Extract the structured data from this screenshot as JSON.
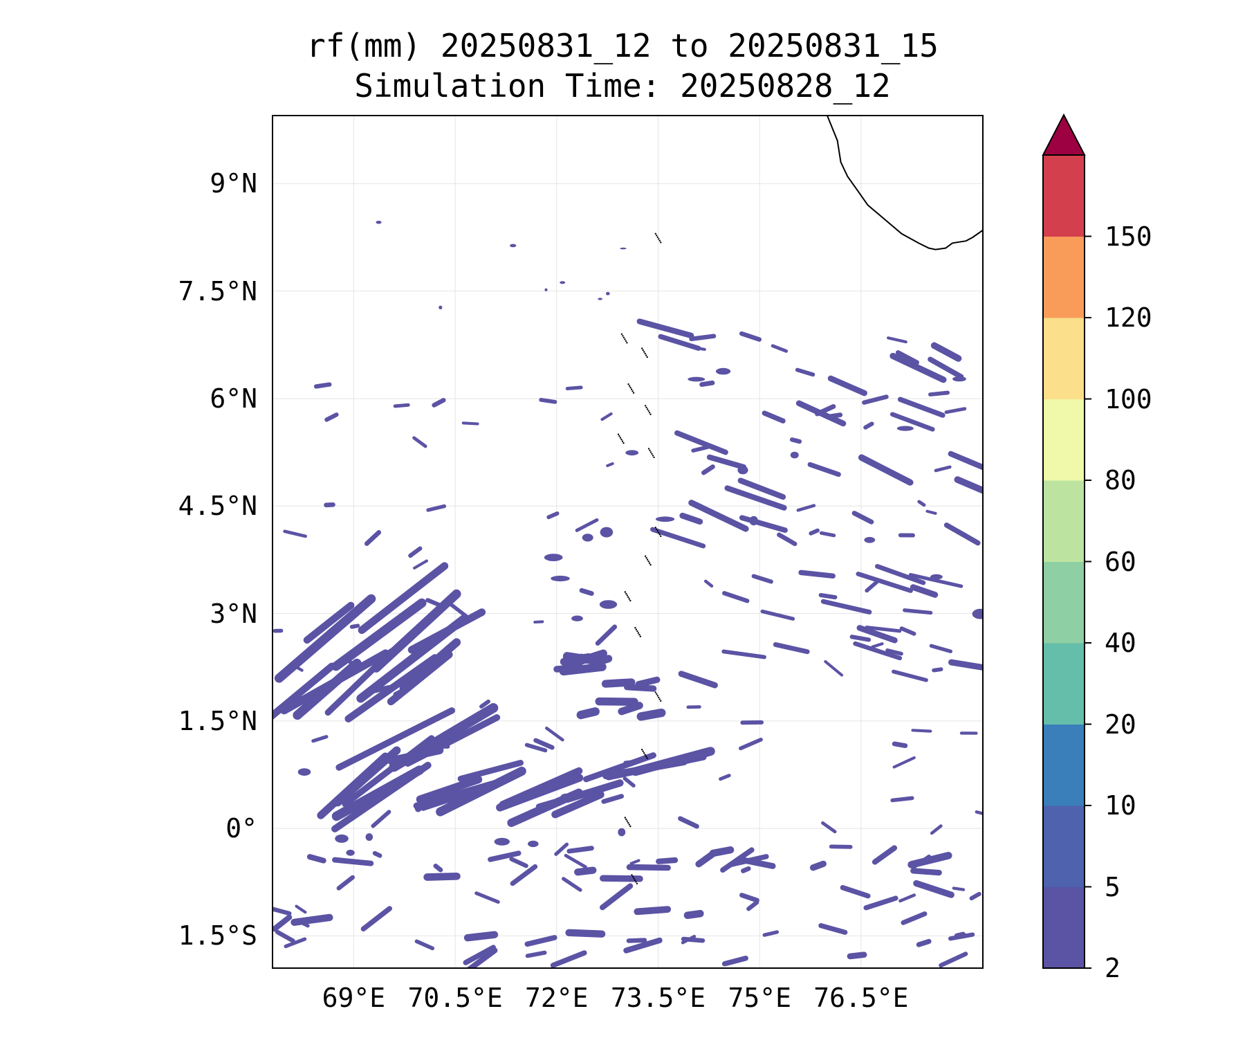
{
  "title": {
    "line1": "rf(mm) 20250831_12 to 20250831_15",
    "line2": "Simulation Time: 20250828_12"
  },
  "map": {
    "lon_range": [
      67.8,
      78.3
    ],
    "lat_range": [
      -1.95,
      9.95
    ],
    "lat_ticks": [
      {
        "value": 9,
        "label": "9°N"
      },
      {
        "value": 7.5,
        "label": "7.5°N"
      },
      {
        "value": 6,
        "label": "6°N"
      },
      {
        "value": 4.5,
        "label": "4.5°N"
      },
      {
        "value": 3,
        "label": "3°N"
      },
      {
        "value": 1.5,
        "label": "1.5°N"
      },
      {
        "value": 0,
        "label": "0°"
      },
      {
        "value": -1.5,
        "label": "1.5°S"
      }
    ],
    "lon_ticks": [
      {
        "value": 69,
        "label": "69°E"
      },
      {
        "value": 70.5,
        "label": "70.5°E"
      },
      {
        "value": 72,
        "label": "72°E"
      },
      {
        "value": 73.5,
        "label": "73.5°E"
      },
      {
        "value": 75,
        "label": "75°E"
      },
      {
        "value": 76.5,
        "label": "76.5°E"
      }
    ],
    "gridlines": true,
    "rain_color": "#5b53a4",
    "rain_class": "2-5 mm",
    "coastline": [
      [
        76.0,
        9.95
      ],
      [
        76.15,
        9.6
      ],
      [
        76.2,
        9.3
      ],
      [
        76.3,
        9.1
      ],
      [
        76.45,
        8.9
      ],
      [
        76.6,
        8.7
      ],
      [
        76.85,
        8.5
      ],
      [
        77.1,
        8.3
      ],
      [
        77.35,
        8.17
      ],
      [
        77.5,
        8.1
      ],
      [
        77.6,
        8.08
      ],
      [
        77.75,
        8.1
      ],
      [
        77.85,
        8.17
      ],
      [
        78.05,
        8.2
      ],
      [
        78.15,
        8.25
      ],
      [
        78.3,
        8.35
      ]
    ],
    "islands": [
      [
        73.5,
        8.3
      ],
      [
        73.0,
        6.9
      ],
      [
        73.3,
        6.7
      ],
      [
        73.1,
        6.2
      ],
      [
        73.35,
        5.9
      ],
      [
        72.95,
        5.5
      ],
      [
        73.4,
        5.3
      ],
      [
        73.5,
        4.2
      ],
      [
        73.35,
        3.8
      ],
      [
        73.05,
        3.3
      ],
      [
        73.2,
        2.8
      ],
      [
        73.5,
        1.9
      ],
      [
        73.3,
        1.1
      ],
      [
        73.05,
        0.15
      ],
      [
        73.15,
        -0.65
      ]
    ]
  },
  "colorbar": {
    "ticks": [
      "2",
      "5",
      "10",
      "20",
      "40",
      "60",
      "80",
      "100",
      "120",
      "150"
    ],
    "colors": [
      "#5b53a4",
      "#4f62ad",
      "#3a7fba",
      "#65bea9",
      "#8fcfa4",
      "#bce4a0",
      "#f0f8a9",
      "#fbdf8a",
      "#f99c59",
      "#d43f4e"
    ],
    "extend_color": "#9e0142"
  }
}
